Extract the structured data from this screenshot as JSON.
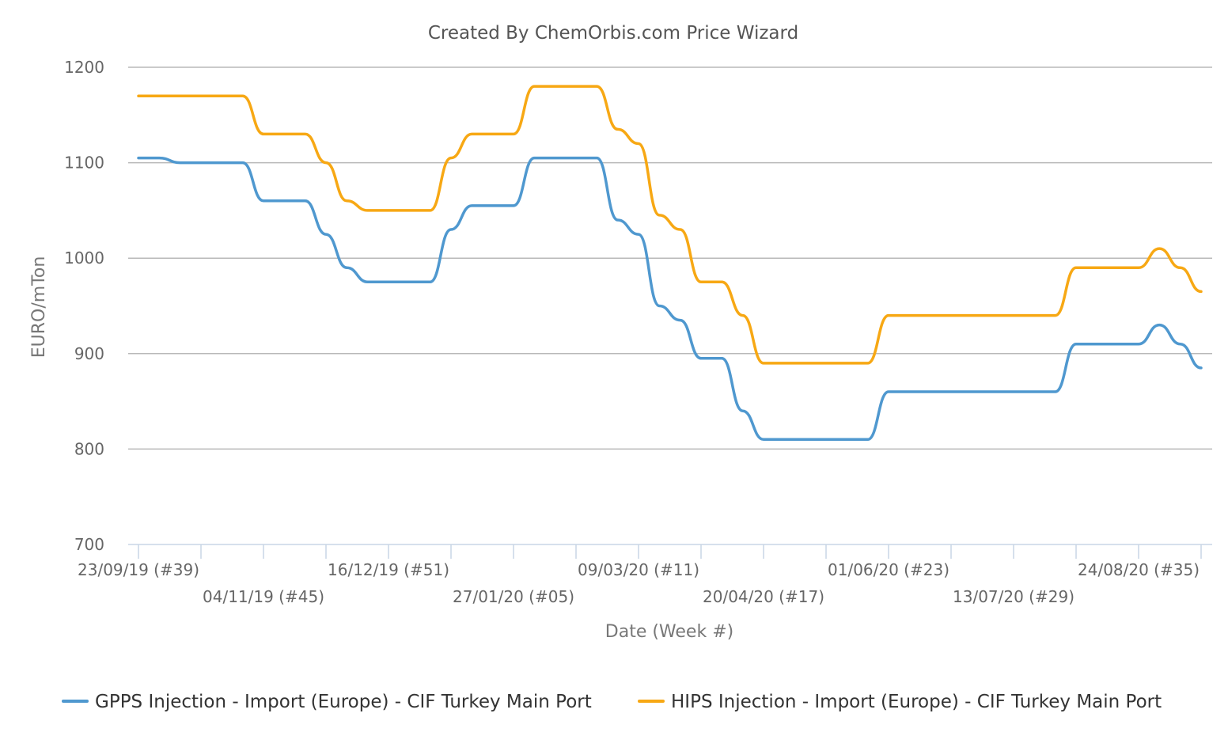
{
  "chart_data": {
    "type": "line",
    "title": "Created By ChemOrbis.com Price Wizard",
    "xlabel": "Date (Week #)",
    "ylabel": "EURO/mTon",
    "ylim": [
      700,
      1200
    ],
    "yticks": [
      700,
      800,
      900,
      1000,
      1100,
      1200
    ],
    "grid": true,
    "legend_position": "bottom",
    "x": [
      "23/09/19 (#39)",
      "30/09/19 (#40)",
      "07/10/19 (#41)",
      "14/10/19 (#42)",
      "21/10/19 (#43)",
      "28/10/19 (#44)",
      "04/11/19 (#45)",
      "11/11/19 (#46)",
      "18/11/19 (#47)",
      "25/11/19 (#48)",
      "02/12/19 (#49)",
      "09/12/19 (#50)",
      "16/12/19 (#51)",
      "23/12/19 (#52)",
      "30/12/19 (#01)",
      "06/01/20 (#02)",
      "13/01/20 (#03)",
      "20/01/20 (#04)",
      "27/01/20 (#05)",
      "03/02/20 (#06)",
      "10/02/20 (#07)",
      "17/02/20 (#08)",
      "24/02/20 (#09)",
      "02/03/20 (#10)",
      "09/03/20 (#11)",
      "16/03/20 (#12)",
      "23/03/20 (#13)",
      "30/03/20 (#14)",
      "06/04/20 (#15)",
      "13/04/20 (#16)",
      "20/04/20 (#17)",
      "27/04/20 (#18)",
      "04/05/20 (#19)",
      "11/05/20 (#20)",
      "18/05/20 (#21)",
      "25/05/20 (#22)",
      "01/06/20 (#23)",
      "08/06/20 (#24)",
      "15/06/20 (#25)",
      "22/06/20 (#26)",
      "29/06/20 (#27)",
      "06/07/20 (#28)",
      "13/07/20 (#29)",
      "20/07/20 (#30)",
      "27/07/20 (#31)",
      "03/08/20 (#32)",
      "10/08/20 (#33)",
      "17/08/20 (#34)",
      "24/08/20 (#35)",
      "31/08/20 (#36)",
      "07/09/20 (#37)",
      "14/09/20 (#38)"
    ],
    "tick_labels": [
      "23/09/19 (#39)",
      "04/11/19 (#45)",
      "16/12/19 (#51)",
      "27/01/20 (#05)",
      "09/03/20 (#11)",
      "20/04/20 (#17)",
      "01/06/20 (#23)",
      "13/07/20 (#29)",
      "24/08/20 (#35)"
    ],
    "series": [
      {
        "name": "GPPS Injection - Import (Europe) - CIF Turkey Main Port",
        "color": "#4f98cf",
        "values": [
          1105,
          1105,
          1100,
          1100,
          1100,
          1100,
          1060,
          1060,
          1060,
          1025,
          990,
          975,
          975,
          975,
          975,
          1030,
          1055,
          1055,
          1055,
          1105,
          1105,
          1105,
          1105,
          1040,
          1025,
          950,
          935,
          895,
          895,
          840,
          810,
          810,
          810,
          810,
          810,
          810,
          860,
          860,
          860,
          860,
          860,
          860,
          860,
          860,
          860,
          910,
          910,
          910,
          910,
          930,
          910,
          885
        ]
      },
      {
        "name": "HIPS Injection - Import (Europe) - CIF Turkey Main Port",
        "color": "#f7a814",
        "values": [
          1170,
          1170,
          1170,
          1170,
          1170,
          1170,
          1130,
          1130,
          1130,
          1100,
          1060,
          1050,
          1050,
          1050,
          1050,
          1105,
          1130,
          1130,
          1130,
          1180,
          1180,
          1180,
          1180,
          1135,
          1120,
          1045,
          1030,
          975,
          975,
          940,
          890,
          890,
          890,
          890,
          890,
          890,
          940,
          940,
          940,
          940,
          940,
          940,
          940,
          940,
          940,
          990,
          990,
          990,
          990,
          1010,
          990,
          965
        ]
      }
    ]
  }
}
